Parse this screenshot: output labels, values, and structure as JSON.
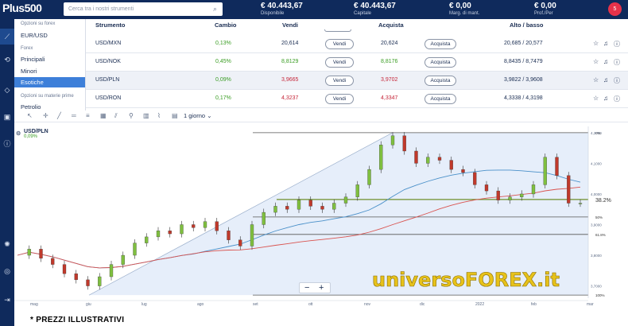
{
  "topbar": {
    "logo": "Plus500",
    "search_placeholder": "Cerca tra i nostri strumenti",
    "stats": [
      {
        "value": "€ 40.443,67",
        "label": "Disponibile"
      },
      {
        "value": "€ 40.443,67",
        "label": "Capitale"
      },
      {
        "value": "€ 0,00",
        "label": "Marg. di mant."
      },
      {
        "value": "€ 0,00",
        "label": "Prof./Per"
      }
    ],
    "notifications": "5"
  },
  "menu": {
    "forex_options_heading": "Opzioni su forex",
    "forex_options_item": "EUR/USD",
    "forex_heading": "Forex",
    "items": [
      "Principali",
      "Minori",
      "Esotiche"
    ],
    "commodity_heading": "Opzioni su materie prime",
    "commodity_item": "Petrolio"
  },
  "table": {
    "headers": {
      "instrument": "Strumento",
      "change": "Cambio",
      "sell": "Vendi",
      "buy": "Acquista",
      "highlow": "Alto / basso"
    },
    "rows": [
      {
        "name": "USD/MXN",
        "change": "0,13%",
        "sell": "20,614",
        "sell_btn": "Vendi",
        "buy": "20,624",
        "buy_btn": "Acquista",
        "highlow": "20,685 / 20,577"
      },
      {
        "name": "USD/NOK",
        "change": "0,45%",
        "sell": "8,8129",
        "sell_btn": "Vendi",
        "buy": "8,8176",
        "buy_btn": "Acquista",
        "highlow": "8,8435 / 8,7479"
      },
      {
        "name": "USD/PLN",
        "change": "0,09%",
        "sell": "3,9665",
        "sell_btn": "Vendi",
        "buy": "3,9702",
        "buy_btn": "Acquista",
        "highlow": "3,9822 / 3,9608"
      },
      {
        "name": "USD/RON",
        "change": "0,17%",
        "sell": "4,3237",
        "sell_btn": "Vendi",
        "buy": "4,3347",
        "buy_btn": "Acquista",
        "highlow": "4,3338 / 4,3198"
      }
    ]
  },
  "chart_toolbar": {
    "period": "1 giorno"
  },
  "chart": {
    "instrument": "USD/PLN",
    "change": "0,09%",
    "zoom_out": "−",
    "zoom_in": "+",
    "watermark": "universoFOREX.it",
    "fib_labels": {
      "f382": "38.2%",
      "f50": "50%",
      "f618": "61.8%",
      "f100": "100%",
      "f0": "0%"
    }
  },
  "chart_data": {
    "type": "line",
    "x_labels": [
      "mag",
      "giu",
      "lug",
      "ago",
      "set",
      "ott",
      "nov",
      "dic",
      "2022",
      "feb",
      "mar"
    ],
    "y_ticks": [
      "4,2000",
      "4,1000",
      "4,0000",
      "3,9000",
      "3,8000",
      "3,7000"
    ],
    "series": [
      {
        "values": [
          3.8,
          3.82,
          3.79,
          3.77,
          3.74,
          3.72,
          3.7,
          3.73,
          3.77,
          3.8,
          3.84,
          3.86,
          3.88,
          3.87,
          3.9,
          3.89,
          3.91,
          3.88,
          3.85,
          3.83,
          3.9,
          3.94,
          3.96,
          3.95,
          3.98,
          3.96,
          3.95,
          3.97,
          3.99,
          4.03,
          4.08,
          4.16,
          4.19,
          4.14,
          4.1,
          4.12,
          4.11,
          4.08,
          4.07,
          4.03,
          4.01,
          3.98,
          3.99,
          4.0,
          4.03,
          4.12,
          4.06,
          3.97,
          3.97
        ]
      }
    ],
    "fib_levels": [
      4.2,
      3.982,
      3.925,
      3.868,
      3.67
    ],
    "ylim": [
      3.66,
      4.21
    ]
  },
  "footer": {
    "note": "* PREZZI ILLUSTRATIVI"
  }
}
